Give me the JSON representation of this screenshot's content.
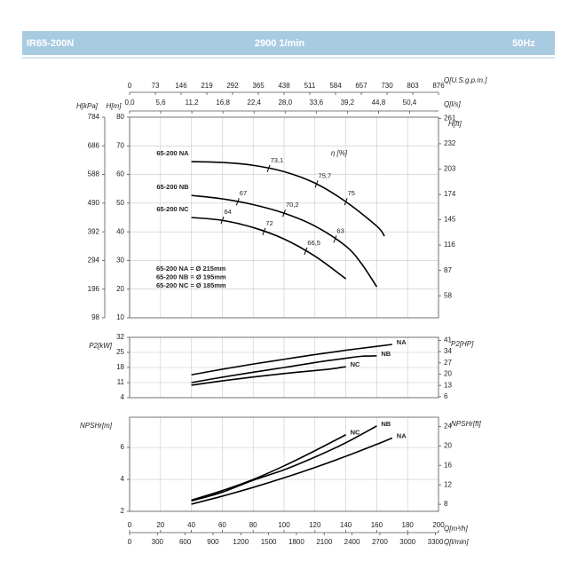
{
  "header": {
    "model": "IR65-200N",
    "speed": "2900 1/min",
    "frequency": "50Hz"
  },
  "chart_data": [
    {
      "type": "line",
      "xlim": [
        0,
        200
      ],
      "top_axes": [
        {
          "label": "Q[U.S.g.p.m.]",
          "lim": [
            0,
            876
          ],
          "ticks": [
            0,
            73,
            146,
            219,
            292,
            365,
            438,
            511,
            584,
            657,
            730,
            803,
            876
          ]
        },
        {
          "label": "Q[l/s]",
          "lim": [
            0,
            55.6
          ],
          "ticks": [
            {
              "value": 0,
              "label": "0,0"
            },
            {
              "value": 5.6,
              "label": "5,6"
            },
            {
              "value": 11.2,
              "label": "11,2"
            },
            {
              "value": 16.8,
              "label": "16,8"
            },
            {
              "value": 22.4,
              "label": "22,4"
            },
            {
              "value": 28,
              "label": "28,0"
            },
            {
              "value": 33.6,
              "label": "33,6"
            },
            {
              "value": 39.2,
              "label": "39,2"
            },
            {
              "value": 44.8,
              "label": "44,8"
            },
            {
              "value": 50.4,
              "label": "50,4"
            }
          ]
        }
      ],
      "ylabel": "H[m]",
      "ylim": [
        10,
        80
      ],
      "yticks": [
        10,
        20,
        30,
        40,
        50,
        60,
        70,
        80
      ],
      "y_kpa": {
        "label": "H[kPa]",
        "lim": [
          98,
          784
        ],
        "ticks": [
          98,
          196,
          294,
          392,
          490,
          588,
          686,
          784
        ]
      },
      "y2label": "H[ft]",
      "y2lim": [
        32.8,
        262.4
      ],
      "y2ticks": [
        58,
        87,
        116,
        145,
        174,
        203,
        232,
        261
      ],
      "efficiency_label": "η [%]",
      "series": [
        {
          "name": "65-200 NA",
          "color": "#000000",
          "x": [
            40,
            60,
            80,
            100,
            120,
            140,
            160,
            165
          ],
          "values": [
            64.5,
            64.2,
            63.2,
            61,
            57,
            50.5,
            42,
            38.5
          ],
          "efficiency": {
            "x": [
              90,
              121,
              140
            ],
            "values": [
              73.1,
              75.7,
              75
            ],
            "value_labels": [
              "73,1",
              "75,7",
              "75"
            ]
          }
        },
        {
          "name": "65-200 NB",
          "color": "#000000",
          "x": [
            40,
            60,
            80,
            100,
            120,
            140,
            150,
            160
          ],
          "values": [
            52.7,
            51.5,
            49.5,
            46.5,
            42,
            35,
            29,
            20.8
          ],
          "efficiency": {
            "x": [
              70,
              100,
              133
            ],
            "values": [
              67,
              70.2,
              63
            ],
            "value_labels": [
              "67",
              "70,2",
              "63"
            ]
          }
        },
        {
          "name": "65-200 NC",
          "color": "#000000",
          "x": [
            40,
            60,
            80,
            100,
            120,
            140
          ],
          "values": [
            45,
            44,
            41.5,
            37.5,
            31.5,
            23.6
          ],
          "efficiency": {
            "x": [
              60,
              87,
              114
            ],
            "values": [
              64,
              72,
              66.5
            ],
            "value_labels": [
              "64",
              "72",
              "66,5"
            ]
          }
        }
      ],
      "diameters": [
        "65-200 NA = Ø 215mm",
        "65-200 NB = Ø 195mm",
        "65-200 NC = Ø 185mm"
      ]
    },
    {
      "type": "line",
      "xlim": [
        0,
        200
      ],
      "ylabel": "P2[kW]",
      "ylim": [
        4,
        32
      ],
      "yticks": [
        4,
        11,
        18,
        25,
        32
      ],
      "y2label": "P2[HP]",
      "y2lim": [
        5.36,
        42.9
      ],
      "y2ticks": [
        6,
        13,
        20,
        27,
        34,
        41
      ],
      "series": [
        {
          "name": "NA",
          "color": "#000000",
          "x": [
            40,
            60,
            80,
            100,
            120,
            140,
            160,
            170
          ],
          "values": [
            14.6,
            17.2,
            19.6,
            21.8,
            24,
            26,
            27.8,
            28.7
          ]
        },
        {
          "name": "NB",
          "color": "#000000",
          "x": [
            40,
            60,
            80,
            100,
            120,
            140,
            150,
            160
          ],
          "values": [
            11,
            13.5,
            15.8,
            18,
            20.3,
            22.3,
            23.2,
            23.4
          ]
        },
        {
          "name": "NC",
          "color": "#000000",
          "x": [
            40,
            60,
            80,
            100,
            120,
            130,
            140
          ],
          "values": [
            9.8,
            11.8,
            13.6,
            15.2,
            16.6,
            17.3,
            18.4
          ]
        }
      ]
    },
    {
      "type": "line",
      "xlim": [
        0,
        200
      ],
      "xticks": [
        0,
        20,
        40,
        60,
        80,
        100,
        120,
        140,
        160,
        180,
        200
      ],
      "xlabel": "Q[m³/h]",
      "x2": {
        "label": "Q[l/min]",
        "lim": [
          0,
          3333.3
        ],
        "ticks": [
          0,
          300,
          600,
          900,
          1200,
          1500,
          1800,
          2100,
          2400,
          2700,
          3000,
          3300
        ]
      },
      "ylabel": "NPSHr[m]",
      "ylim": [
        2,
        7.9
      ],
      "yticks": [
        2,
        4,
        6
      ],
      "y2label": "NPSHr[ft]",
      "y2lim": [
        6.56,
        25.9
      ],
      "y2ticks": [
        8,
        12,
        16,
        20,
        24
      ],
      "series": [
        {
          "name": "NC",
          "color": "#000000",
          "x": [
            40,
            60,
            80,
            100,
            120,
            140
          ],
          "values": [
            2.7,
            3.3,
            4,
            4.85,
            5.8,
            6.8
          ]
        },
        {
          "name": "NB",
          "color": "#000000",
          "x": [
            40,
            60,
            80,
            100,
            120,
            140,
            160
          ],
          "values": [
            2.65,
            3.2,
            3.95,
            4.6,
            5.4,
            6.3,
            7.35
          ]
        },
        {
          "name": "NA",
          "color": "#000000",
          "x": [
            40,
            60,
            80,
            100,
            120,
            140,
            160,
            170
          ],
          "values": [
            2.45,
            2.95,
            3.5,
            4.1,
            4.75,
            5.45,
            6.2,
            6.6
          ]
        }
      ]
    }
  ]
}
